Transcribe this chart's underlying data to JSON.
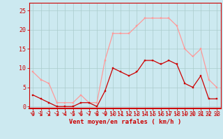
{
  "hours": [
    0,
    1,
    2,
    3,
    4,
    5,
    6,
    7,
    8,
    9,
    10,
    11,
    12,
    13,
    14,
    15,
    16,
    17,
    18,
    19,
    20,
    21,
    22,
    23
  ],
  "wind_avg": [
    3,
    2,
    1,
    0,
    0,
    0,
    1,
    1,
    0,
    4,
    10,
    9,
    8,
    9,
    12,
    12,
    11,
    12,
    11,
    6,
    5,
    8,
    2,
    2
  ],
  "wind_gust": [
    9,
    7,
    6,
    1,
    1,
    1,
    3,
    1,
    1,
    12,
    19,
    19,
    19,
    21,
    23,
    23,
    23,
    23,
    21,
    15,
    13,
    15,
    7,
    5
  ],
  "bg_color": "#cce9f0",
  "grid_color": "#aacccc",
  "line_avg_color": "#cc0000",
  "line_gust_color": "#ff9999",
  "xlabel": "Vent moyen/en rafales ( km/h )",
  "xlabel_color": "#cc0000",
  "tick_color": "#cc0000",
  "spine_color": "#cc0000",
  "ylim": [
    -0.5,
    27
  ],
  "yticks": [
    0,
    5,
    10,
    15,
    20,
    25
  ],
  "label_fontsize": 6.5,
  "tick_fontsize": 6.0
}
